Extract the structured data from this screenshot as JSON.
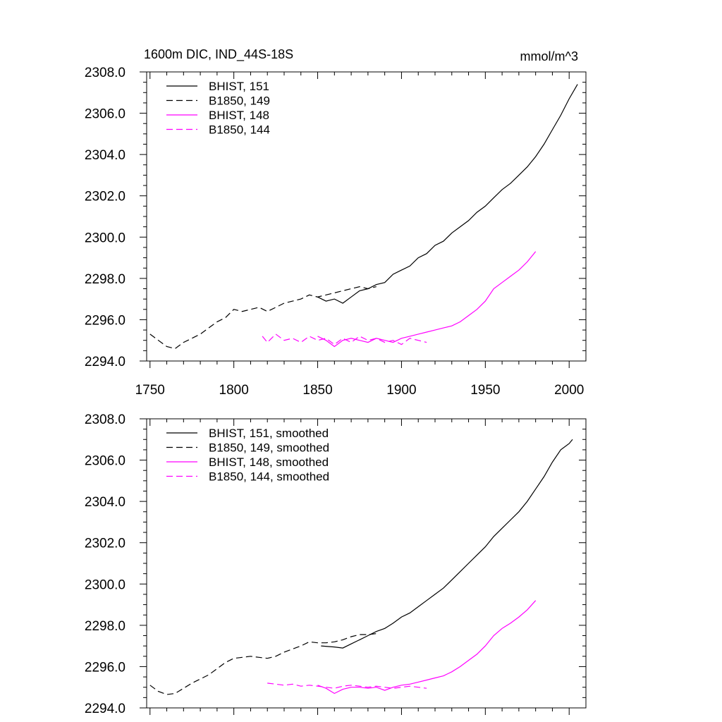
{
  "chart_data": [
    {
      "type": "line",
      "title": "1600m DIC, IND_44S-18S",
      "units": "mmol/m^3",
      "xlim": [
        1748,
        2010
      ],
      "ylim": [
        2294.0,
        2308.0
      ],
      "xticks": [
        1750,
        1800,
        1850,
        1900,
        1950,
        2000
      ],
      "yticks": [
        2294.0,
        2296.0,
        2298.0,
        2300.0,
        2302.0,
        2304.0,
        2306.0,
        2308.0
      ],
      "ytick_labels": [
        "2294.0",
        "2296.0",
        "2298.0",
        "2300.0",
        "2302.0",
        "2304.0",
        "2306.0",
        "2308.0"
      ],
      "show_xtick_labels": true,
      "legend_position": "top-left",
      "series": [
        {
          "name": "BHIST, 151",
          "color": "#000000",
          "dash": "solid",
          "x": [
            1850,
            1855,
            1860,
            1865,
            1870,
            1875,
            1880,
            1885,
            1890,
            1895,
            1900,
            1905,
            1910,
            1915,
            1920,
            1925,
            1930,
            1935,
            1940,
            1945,
            1950,
            1955,
            1960,
            1965,
            1970,
            1975,
            1980,
            1985,
            1990,
            1995,
            2000,
            2005
          ],
          "y": [
            2297.1,
            2296.9,
            2297.0,
            2296.8,
            2297.1,
            2297.4,
            2297.5,
            2297.7,
            2297.8,
            2298.2,
            2298.4,
            2298.6,
            2299.0,
            2299.2,
            2299.6,
            2299.8,
            2300.2,
            2300.5,
            2300.8,
            2301.2,
            2301.5,
            2301.9,
            2302.3,
            2302.6,
            2303.0,
            2303.4,
            2303.9,
            2304.5,
            2305.2,
            2305.9,
            2306.7,
            2307.4
          ]
        },
        {
          "name": "B1850, 149",
          "color": "#000000",
          "dash": "dashed",
          "x": [
            1750,
            1755,
            1760,
            1765,
            1770,
            1775,
            1780,
            1785,
            1790,
            1795,
            1800,
            1805,
            1810,
            1815,
            1820,
            1825,
            1830,
            1835,
            1840,
            1845,
            1850,
            1855,
            1860,
            1865,
            1870,
            1875,
            1880,
            1885
          ],
          "y": [
            2295.3,
            2295.0,
            2294.7,
            2294.6,
            2294.9,
            2295.1,
            2295.3,
            2295.6,
            2295.9,
            2296.1,
            2296.5,
            2296.4,
            2296.5,
            2296.6,
            2296.4,
            2296.6,
            2296.8,
            2296.9,
            2297.0,
            2297.2,
            2297.1,
            2297.2,
            2297.3,
            2297.4,
            2297.5,
            2297.6,
            2297.5,
            2297.6
          ]
        },
        {
          "name": "BHIST, 148",
          "color": "#ff00ff",
          "dash": "solid",
          "x": [
            1850,
            1855,
            1860,
            1865,
            1870,
            1875,
            1880,
            1885,
            1890,
            1895,
            1900,
            1905,
            1910,
            1915,
            1920,
            1925,
            1930,
            1935,
            1940,
            1945,
            1950,
            1955,
            1960,
            1965,
            1970,
            1975,
            1980
          ],
          "y": [
            2295.2,
            2295.0,
            2294.7,
            2295.0,
            2295.1,
            2295.0,
            2294.9,
            2295.1,
            2295.0,
            2294.9,
            2295.1,
            2295.2,
            2295.3,
            2295.4,
            2295.5,
            2295.6,
            2295.7,
            2295.9,
            2296.2,
            2296.5,
            2296.9,
            2297.5,
            2297.8,
            2298.1,
            2298.4,
            2298.8,
            2299.3
          ]
        },
        {
          "name": "B1850, 144",
          "color": "#ff00ff",
          "dash": "dashed",
          "x": [
            1817,
            1820,
            1825,
            1830,
            1835,
            1840,
            1845,
            1850,
            1855,
            1860,
            1865,
            1870,
            1875,
            1880,
            1885,
            1890,
            1895,
            1900,
            1905,
            1910,
            1915
          ],
          "y": [
            2295.2,
            2294.9,
            2295.3,
            2295.0,
            2295.1,
            2294.9,
            2295.2,
            2295.0,
            2295.1,
            2294.8,
            2295.1,
            2294.9,
            2295.2,
            2295.0,
            2295.1,
            2294.9,
            2295.0,
            2294.8,
            2295.1,
            2295.0,
            2294.9
          ]
        }
      ]
    },
    {
      "type": "line",
      "xlim": [
        1748,
        2010
      ],
      "ylim": [
        2294.0,
        2308.0
      ],
      "xticks": [
        1750,
        1800,
        1850,
        1900,
        1950,
        2000
      ],
      "yticks": [
        2294.0,
        2296.0,
        2298.0,
        2300.0,
        2302.0,
        2304.0,
        2306.0,
        2308.0
      ],
      "ytick_labels": [
        "2294.0",
        "2296.0",
        "2298.0",
        "2300.0",
        "2302.0",
        "2304.0",
        "2306.0",
        "2308.0"
      ],
      "show_xtick_labels": false,
      "legend_position": "top-left",
      "series": [
        {
          "name": "BHIST, 151, smoothed",
          "color": "#000000",
          "dash": "solid",
          "x": [
            1852,
            1860,
            1865,
            1870,
            1875,
            1880,
            1885,
            1890,
            1895,
            1900,
            1905,
            1910,
            1915,
            1920,
            1925,
            1930,
            1935,
            1940,
            1945,
            1950,
            1955,
            1960,
            1965,
            1970,
            1975,
            1980,
            1985,
            1990,
            1995,
            2000,
            2002
          ],
          "y": [
            2297.0,
            2296.95,
            2296.9,
            2297.1,
            2297.3,
            2297.5,
            2297.7,
            2297.85,
            2298.1,
            2298.4,
            2298.6,
            2298.9,
            2299.2,
            2299.5,
            2299.8,
            2300.2,
            2300.6,
            2301.0,
            2301.4,
            2301.8,
            2302.3,
            2302.7,
            2303.1,
            2303.5,
            2304.0,
            2304.6,
            2305.2,
            2305.9,
            2306.5,
            2306.8,
            2307.0
          ]
        },
        {
          "name": "B1850, 149, smoothed",
          "color": "#000000",
          "dash": "dashed",
          "x": [
            1750,
            1755,
            1760,
            1765,
            1770,
            1775,
            1780,
            1785,
            1790,
            1795,
            1800,
            1805,
            1810,
            1815,
            1820,
            1825,
            1830,
            1835,
            1840,
            1845,
            1850,
            1855,
            1860,
            1865,
            1870,
            1875,
            1880,
            1885
          ],
          "y": [
            2295.1,
            2294.8,
            2294.65,
            2294.7,
            2294.95,
            2295.2,
            2295.4,
            2295.6,
            2295.9,
            2296.2,
            2296.4,
            2296.45,
            2296.5,
            2296.45,
            2296.4,
            2296.5,
            2296.7,
            2296.85,
            2297.0,
            2297.2,
            2297.15,
            2297.15,
            2297.2,
            2297.3,
            2297.45,
            2297.55,
            2297.55,
            2297.6
          ]
        },
        {
          "name": "BHIST, 148, smoothed",
          "color": "#ff00ff",
          "dash": "solid",
          "x": [
            1850,
            1855,
            1860,
            1865,
            1870,
            1875,
            1880,
            1885,
            1890,
            1895,
            1900,
            1905,
            1910,
            1915,
            1920,
            1925,
            1930,
            1935,
            1940,
            1945,
            1950,
            1955,
            1960,
            1965,
            1970,
            1975,
            1980
          ],
          "y": [
            2295.1,
            2294.95,
            2294.7,
            2294.9,
            2295.0,
            2295.0,
            2294.95,
            2295.0,
            2294.85,
            2295.0,
            2295.1,
            2295.15,
            2295.25,
            2295.35,
            2295.45,
            2295.55,
            2295.75,
            2296.0,
            2296.3,
            2296.6,
            2297.0,
            2297.5,
            2297.85,
            2298.1,
            2298.4,
            2298.75,
            2299.2
          ]
        },
        {
          "name": "B1850, 144, smoothed",
          "color": "#ff00ff",
          "dash": "dashed",
          "x": [
            1820,
            1825,
            1830,
            1835,
            1840,
            1845,
            1850,
            1855,
            1860,
            1865,
            1870,
            1875,
            1880,
            1885,
            1890,
            1895,
            1900,
            1905,
            1910,
            1915
          ],
          "y": [
            2295.2,
            2295.15,
            2295.1,
            2295.15,
            2295.05,
            2295.1,
            2295.05,
            2295.0,
            2294.95,
            2295.05,
            2295.1,
            2295.05,
            2295.0,
            2295.05,
            2295.0,
            2294.95,
            2295.0,
            2295.05,
            2295.0,
            2294.95
          ]
        }
      ]
    }
  ]
}
